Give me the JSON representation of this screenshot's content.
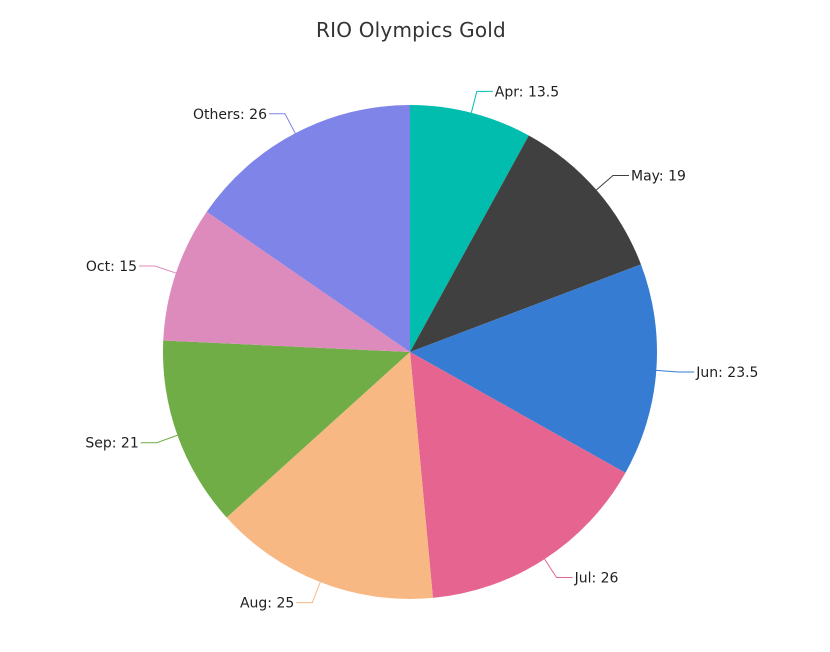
{
  "chart_data": {
    "type": "pie",
    "title": "RIO Olympics Gold",
    "start_angle_deg": 0,
    "direction": "clockwise",
    "legend": "none",
    "slices": [
      {
        "label": "Apr",
        "value": 13.5,
        "color": "#00bdae"
      },
      {
        "label": "May",
        "value": 19,
        "color": "#404041"
      },
      {
        "label": "Jun",
        "value": 23.5,
        "color": "#357cd2"
      },
      {
        "label": "Jul",
        "value": 26,
        "color": "#e56590"
      },
      {
        "label": "Aug",
        "value": 25,
        "color": "#f8b883"
      },
      {
        "label": "Sep",
        "value": 21,
        "color": "#70ad47"
      },
      {
        "label": "Oct",
        "value": 15,
        "color": "#dd8abd"
      },
      {
        "label": "Others",
        "value": 26,
        "color": "#7f84e8"
      }
    ],
    "data_labels": [
      "Apr: 13.5",
      "May: 19",
      "Jun: 23.5",
      "Jul: 26",
      "Aug: 25",
      "Sep: 21",
      "Oct: 15",
      "Others: 26"
    ]
  }
}
